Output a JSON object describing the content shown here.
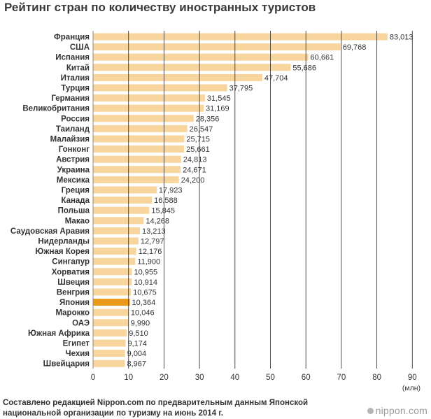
{
  "chart_data": {
    "type": "bar",
    "orientation": "horizontal",
    "title": "Рейтинг стран по количеству иностранных туристов",
    "unit_label": "(млн)",
    "xlim": [
      0,
      90
    ],
    "ticks": [
      0,
      10,
      20,
      30,
      40,
      50,
      60,
      70,
      80,
      90
    ],
    "grid": true,
    "categories": [
      "Франция",
      "США",
      "Испания",
      "Китай",
      "Италия",
      "Турция",
      "Германия",
      "Великобритания",
      "Россия",
      "Таиланд",
      "Малайзия",
      "Гонконг",
      "Австрия",
      "Украина",
      "Мексика",
      "Греция",
      "Канада",
      "Польша",
      "Макао",
      "Саудовская Аравия",
      "Нидерланды",
      "Южная Корея",
      "Сингапур",
      "Хорватия",
      "Швеция",
      "Венгрия",
      "Япония",
      "Марокко",
      "ОАЭ",
      "Южная Африка",
      "Египет",
      "Чехия",
      "Швейцария"
    ],
    "values": [
      83.013,
      69.768,
      60.661,
      55.686,
      47.704,
      37.795,
      31.545,
      31.169,
      28.356,
      26.547,
      25.715,
      25.661,
      24.813,
      24.671,
      24.2,
      17.923,
      16.588,
      15.845,
      14.268,
      13.213,
      12.797,
      12.176,
      11.9,
      10.955,
      10.914,
      10.675,
      10.364,
      10.046,
      9.99,
      9.51,
      9.174,
      9.004,
      8.967
    ],
    "value_labels": [
      "83,013",
      "69,768",
      "60,661",
      "55,686",
      "47,704",
      "37,795",
      "31,545",
      "31,169",
      "28,356",
      "26,547",
      "25,715",
      "25,661",
      "24,813",
      "24,671",
      "24,200",
      "17,923",
      "16,588",
      "15,845",
      "14,268",
      "13,213",
      "12,797",
      "12,176",
      "11,900",
      "10,955",
      "10,914",
      "10,675",
      "10,364",
      "10,046",
      "9,990",
      "9,510",
      "9,174",
      "9,004",
      "8,967"
    ],
    "bar_color": "#f7d59d",
    "highlight_index": 26,
    "highlight_color": "#ea9a1b"
  },
  "source_note": {
    "line1": "Составлено редакцией Nippon.com по предварительным данным Японской",
    "line2": "национальной организации по туризму на июнь 2014 г."
  },
  "logo": {
    "text": "nippon.com",
    "icon": "circle-dot-icon"
  }
}
